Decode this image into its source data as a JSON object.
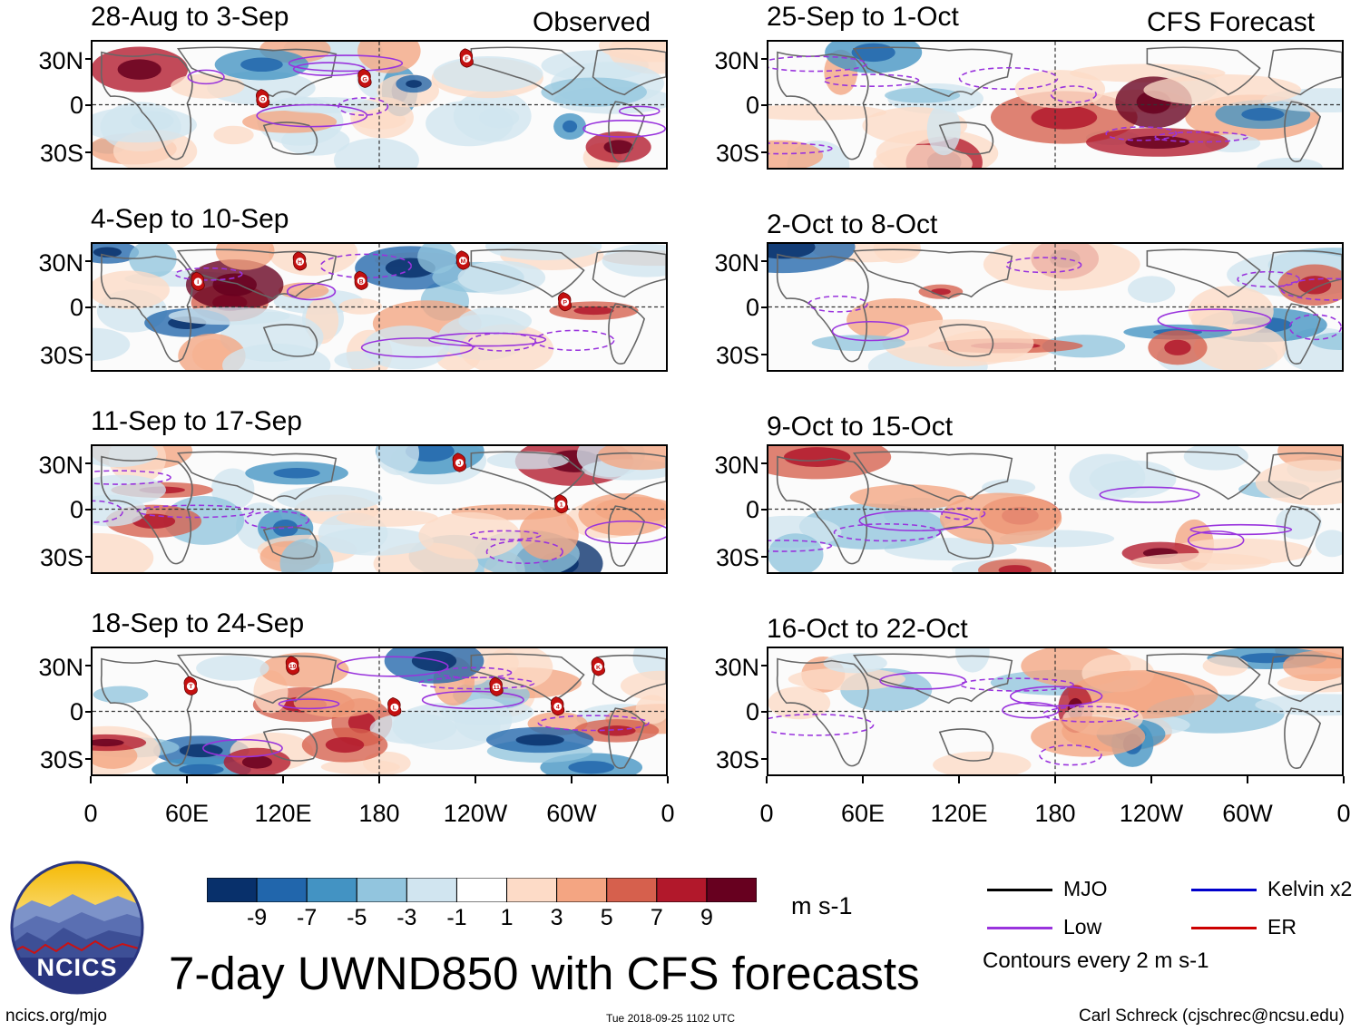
{
  "chart_data": {
    "type": "heatmap",
    "title": "7-day UWND850 with CFS forecasts",
    "variable": "850 hPa zonal wind anomaly",
    "units": "m s-1",
    "latitude_labels": [
      "30N",
      "0",
      "30S"
    ],
    "longitude_labels": [
      "0",
      "60E",
      "120E",
      "180",
      "120W",
      "60W",
      "0"
    ],
    "colorbar_ticks": [
      "-9",
      "-7",
      "-5",
      "-3",
      "-1",
      "1",
      "3",
      "5",
      "7",
      "9"
    ],
    "colorbar_colors": [
      "#08306b",
      "#2166ac",
      "#4393c3",
      "#92c5de",
      "#d1e5f0",
      "#ffffff",
      "#fddbc7",
      "#f4a582",
      "#d6604d",
      "#b2182b",
      "#67001f"
    ],
    "observed_header": "Observed",
    "forecast_header": "CFS Forecast",
    "observed_panels": [
      {
        "period": "28-Aug to 3-Sep",
        "storms": [
          "O",
          "G",
          "F"
        ]
      },
      {
        "period": "4-Sep to 10-Sep",
        "storms": [
          "B",
          "M",
          "P",
          "I",
          "H"
        ]
      },
      {
        "period": "11-Sep to 17-Sep",
        "storms": [
          "J",
          "1"
        ]
      },
      {
        "period": "18-Sep to 24-Sep",
        "storms": [
          "4",
          "T",
          "19",
          "L",
          "11",
          "K"
        ]
      }
    ],
    "forecast_panels": [
      {
        "period": "25-Sep to 1-Oct"
      },
      {
        "period": "2-Oct to 8-Oct"
      },
      {
        "period": "9-Oct to 15-Oct"
      },
      {
        "period": "16-Oct to 22-Oct"
      }
    ],
    "legend": {
      "items": [
        {
          "label": "MJO",
          "color": "#000000"
        },
        {
          "label": "Kelvin x2",
          "color": "#0000cc"
        },
        {
          "label": "Low",
          "color": "#9933dd"
        },
        {
          "label": "ER",
          "color": "#cc0000"
        }
      ],
      "note": "Contours every 2 m s-1"
    }
  },
  "branding": {
    "logo_text": "NCICS",
    "url": "ncics.org/mjo",
    "timestamp": "Tue 2018-09-25 1102 UTC",
    "author": "Carl Schreck (cjschrec@ncsu.edu)"
  }
}
